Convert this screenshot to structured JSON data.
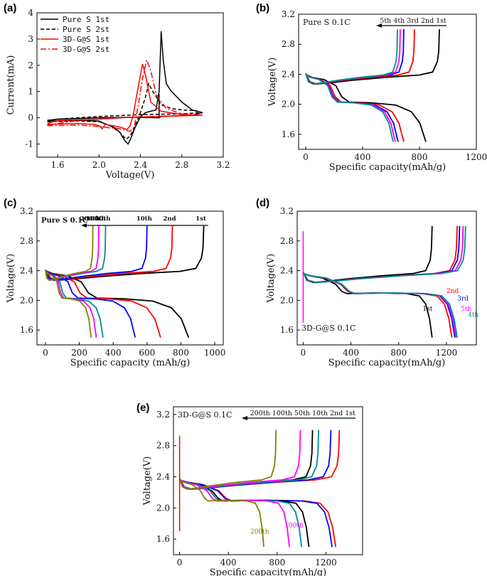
{
  "chart_data": [
    {
      "id": "a",
      "panel_label": "(a)",
      "type": "line",
      "xlabel": "Voltage(V)",
      "ylabel": "Current(mA)",
      "xlim": [
        1.4,
        3.2
      ],
      "ylim": [
        -1.5,
        4
      ],
      "xticks": [
        1.6,
        2.0,
        2.4,
        2.8,
        3.2
      ],
      "xtick_labels": [
        "1.6",
        "2.0",
        "2.4",
        "2.8",
        "3.2"
      ],
      "yticks": [
        -1,
        0,
        1,
        2,
        3,
        4
      ],
      "ytick_labels": [
        "-1",
        "0",
        "1",
        "2",
        "3",
        "4"
      ],
      "legend": [
        {
          "label": "Pure S 1st",
          "color": "#000000",
          "dash": "solid"
        },
        {
          "label": "Pure S 2st",
          "color": "#000000",
          "dash": "dashed"
        },
        {
          "label": "3D-G@S 1st",
          "color": "#ff0000",
          "dash": "solid"
        },
        {
          "label": "3D-G@S 2st",
          "color": "#ff0000",
          "dash": "dashdot"
        }
      ],
      "series": [
        {
          "name": "Pure S 1st",
          "color": "#000000",
          "dash": "solid",
          "points": [
            [
              1.5,
              -0.12
            ],
            [
              1.8,
              -0.1
            ],
            [
              2.0,
              -0.12
            ],
            [
              2.05,
              -0.22
            ],
            [
              2.1,
              -0.3
            ],
            [
              2.15,
              -0.38
            ],
            [
              2.2,
              -0.55
            ],
            [
              2.25,
              -0.88
            ],
            [
              2.28,
              -1.0
            ],
            [
              2.3,
              -0.85
            ],
            [
              2.35,
              -0.35
            ],
            [
              2.4,
              0.05
            ],
            [
              2.45,
              0.2
            ],
            [
              2.5,
              0.25
            ],
            [
              2.55,
              0.3
            ],
            [
              2.58,
              1.0
            ],
            [
              2.6,
              3.3
            ],
            [
              2.62,
              2.2
            ],
            [
              2.65,
              1.3
            ],
            [
              2.7,
              1.0
            ],
            [
              2.8,
              0.6
            ],
            [
              2.9,
              0.3
            ],
            [
              3.0,
              0.2
            ],
            [
              2.9,
              0.1
            ],
            [
              2.6,
              0.05
            ],
            [
              2.58,
              0.0
            ],
            [
              2.58,
              0.9
            ],
            [
              2.58,
              0.0
            ],
            [
              2.3,
              0.02
            ],
            [
              2.0,
              0.0
            ],
            [
              1.6,
              -0.05
            ],
            [
              1.5,
              -0.1
            ]
          ]
        },
        {
          "name": "Pure S 2st",
          "color": "#000000",
          "dash": "dashed",
          "points": [
            [
              1.5,
              -0.15
            ],
            [
              1.8,
              -0.12
            ],
            [
              2.0,
              -0.15
            ],
            [
              2.1,
              -0.28
            ],
            [
              2.2,
              -0.55
            ],
            [
              2.26,
              -0.82
            ],
            [
              2.3,
              -0.7
            ],
            [
              2.35,
              -0.3
            ],
            [
              2.4,
              0.2
            ],
            [
              2.45,
              0.8
            ],
            [
              2.48,
              1.3
            ],
            [
              2.52,
              1.0
            ],
            [
              2.6,
              0.5
            ],
            [
              2.7,
              0.35
            ],
            [
              2.8,
              0.3
            ],
            [
              2.9,
              0.28
            ],
            [
              3.0,
              0.2
            ],
            [
              2.8,
              0.15
            ],
            [
              2.4,
              0.12
            ],
            [
              2.0,
              0.05
            ],
            [
              1.6,
              -0.05
            ],
            [
              1.5,
              -0.12
            ]
          ]
        },
        {
          "name": "3D-G@S 1st",
          "color": "#ff0000",
          "dash": "solid",
          "points": [
            [
              1.5,
              -0.25
            ],
            [
              1.8,
              -0.22
            ],
            [
              1.95,
              -0.25
            ],
            [
              2.0,
              -0.3
            ],
            [
              2.03,
              -0.42
            ],
            [
              2.06,
              -0.25
            ],
            [
              2.1,
              -0.28
            ],
            [
              2.2,
              -0.35
            ],
            [
              2.27,
              -0.45
            ],
            [
              2.3,
              -0.3
            ],
            [
              2.33,
              0.1
            ],
            [
              2.37,
              1.0
            ],
            [
              2.42,
              2.05
            ],
            [
              2.45,
              1.6
            ],
            [
              2.5,
              0.6
            ],
            [
              2.6,
              0.25
            ],
            [
              2.8,
              0.12
            ],
            [
              3.0,
              0.1
            ],
            [
              2.6,
              0.05
            ],
            [
              2.3,
              0.02
            ],
            [
              2.0,
              -0.05
            ],
            [
              1.6,
              -0.1
            ],
            [
              1.5,
              -0.22
            ]
          ]
        },
        {
          "name": "3D-G@S 2st",
          "color": "#ff0000",
          "dash": "dashdot",
          "points": [
            [
              1.5,
              -0.3
            ],
            [
              1.8,
              -0.28
            ],
            [
              2.0,
              -0.33
            ],
            [
              2.1,
              -0.38
            ],
            [
              2.2,
              -0.42
            ],
            [
              2.3,
              -0.52
            ],
            [
              2.34,
              -0.35
            ],
            [
              2.38,
              0.5
            ],
            [
              2.42,
              1.5
            ],
            [
              2.46,
              2.2
            ],
            [
              2.5,
              1.8
            ],
            [
              2.55,
              0.9
            ],
            [
              2.65,
              0.35
            ],
            [
              2.8,
              0.15
            ],
            [
              3.0,
              0.1
            ],
            [
              2.6,
              0.06
            ],
            [
              2.2,
              0.0
            ],
            [
              1.8,
              -0.1
            ],
            [
              1.5,
              -0.28
            ]
          ]
        }
      ]
    },
    {
      "id": "b",
      "panel_label": "(b)",
      "type": "line",
      "title": "Pure S 0.1C",
      "xlabel": "Specific capacity(mAh/g)",
      "ylabel": "Voltage(V)",
      "xlim": [
        -50,
        1200
      ],
      "ylim": [
        1.4,
        3.2
      ],
      "xticks": [
        0,
        400,
        800,
        1200
      ],
      "xtick_labels": [
        "0",
        "400",
        "800",
        "1200"
      ],
      "yticks": [
        1.6,
        2.0,
        2.4,
        2.8,
        3.2
      ],
      "ytick_labels": [
        "1.6",
        "2.0",
        "2.4",
        "2.8",
        "3.2"
      ],
      "cycle_header": "5th 4th 3rd 2nd 1st",
      "series": [
        {
          "name": "1st",
          "color": "#000000",
          "charge_end": 940,
          "discharge_end": 845
        },
        {
          "name": "2nd",
          "color": "#ff0000",
          "charge_end": 765,
          "discharge_end": 690
        },
        {
          "name": "3rd",
          "color": "#0000ff",
          "charge_end": 690,
          "discharge_end": 650
        },
        {
          "name": "4th",
          "color": "#ff00ff",
          "charge_end": 665,
          "discharge_end": 630
        },
        {
          "name": "5th",
          "color": "#008b8b",
          "charge_end": 645,
          "discharge_end": 615
        }
      ]
    },
    {
      "id": "c",
      "panel_label": "(c)",
      "type": "line",
      "title": "Pure S 0.1C",
      "xlabel": "Specific capacity (mAh/g)",
      "ylabel": "Voltage(V)",
      "xlim": [
        -50,
        1050
      ],
      "ylim": [
        1.4,
        3.2
      ],
      "xticks": [
        0,
        200,
        400,
        600,
        800,
        1000
      ],
      "xtick_labels": [
        "0",
        "200",
        "400",
        "600",
        "800",
        "1000"
      ],
      "yticks": [
        1.6,
        2.0,
        2.4,
        2.8,
        3.2
      ],
      "ytick_labels": [
        "1.6",
        "2.0",
        "2.4",
        "2.8",
        "3.2"
      ],
      "cycle_labels": [
        "200th",
        "100th",
        "50th",
        "10th",
        "2nd",
        "1st"
      ],
      "series": [
        {
          "name": "1st",
          "color": "#000000",
          "charge_end": 935,
          "discharge_end": 845
        },
        {
          "name": "2nd",
          "color": "#ff0000",
          "charge_end": 750,
          "discharge_end": 680
        },
        {
          "name": "10th",
          "color": "#0000ff",
          "charge_end": 600,
          "discharge_end": 530
        },
        {
          "name": "50th",
          "color": "#008b8b",
          "charge_end": 355,
          "discharge_end": 340
        },
        {
          "name": "100th",
          "color": "#ff00ff",
          "charge_end": 315,
          "discharge_end": 300
        },
        {
          "name": "200th",
          "color": "#808000",
          "charge_end": 280,
          "discharge_end": 270
        }
      ]
    },
    {
      "id": "d",
      "panel_label": "(d)",
      "type": "line",
      "title": "3D-G@S 0.1C",
      "xlabel": "Specific capacity(mAh/g)",
      "ylabel": "Voltage(V)",
      "xlim": [
        -50,
        1450
      ],
      "ylim": [
        1.4,
        3.2
      ],
      "xticks": [
        0,
        400,
        800,
        1200
      ],
      "xtick_labels": [
        "0",
        "400",
        "800",
        "1200"
      ],
      "yticks": [
        1.6,
        2.0,
        2.4,
        2.8,
        3.2
      ],
      "ytick_labels": [
        "1.6",
        "2.0",
        "2.4",
        "2.8",
        "3.2"
      ],
      "annotations": [
        "1st",
        "2nd",
        "3rd",
        "5th",
        "4th"
      ],
      "series": [
        {
          "name": "1st",
          "color": "#000000",
          "charge_end": 1080,
          "discharge_end": 1080
        },
        {
          "name": "2nd",
          "color": "#ff0000",
          "charge_end": 1290,
          "discharge_end": 1245
        },
        {
          "name": "3rd",
          "color": "#0000ff",
          "charge_end": 1310,
          "discharge_end": 1270
        },
        {
          "name": "5th",
          "color": "#ff00ff",
          "charge_end": 1340,
          "discharge_end": 1280
        },
        {
          "name": "4th",
          "color": "#008b8b",
          "charge_end": 1360,
          "discharge_end": 1290
        }
      ]
    },
    {
      "id": "e",
      "panel_label": "(e)",
      "type": "line",
      "title": "3D-G@S 0.1C",
      "xlabel": "Specific capacity(mAh/g)",
      "ylabel": "Voltage(V)",
      "xlim": [
        -50,
        1500
      ],
      "ylim": [
        1.4,
        3.3
      ],
      "xticks": [
        0,
        400,
        800,
        1200
      ],
      "xtick_labels": [
        "0",
        "400",
        "800",
        "1200"
      ],
      "yticks": [
        1.6,
        2.0,
        2.4,
        2.8,
        3.2
      ],
      "ytick_labels": [
        "1.6",
        "2.0",
        "2.4",
        "2.8",
        "3.2"
      ],
      "cycle_header": "200th 100th 50th 10th 2nd 1st",
      "annotations": [
        "200th",
        "100th"
      ],
      "series": [
        {
          "name": "1st",
          "color": "#ff0000",
          "charge_end": 1310,
          "discharge_end": 1280
        },
        {
          "name": "2nd",
          "color": "#0000ff",
          "charge_end": 1240,
          "discharge_end": 1250
        },
        {
          "name": "10th",
          "color": "#000000",
          "charge_end": 1090,
          "discharge_end": 1060
        },
        {
          "name": "50th",
          "color": "#008b8b",
          "charge_end": 1140,
          "discharge_end": 1000
        },
        {
          "name": "100th",
          "color": "#ff00ff",
          "charge_end": 990,
          "discharge_end": 900
        },
        {
          "name": "200th",
          "color": "#808000",
          "charge_end": 790,
          "discharge_end": 690
        }
      ]
    }
  ]
}
